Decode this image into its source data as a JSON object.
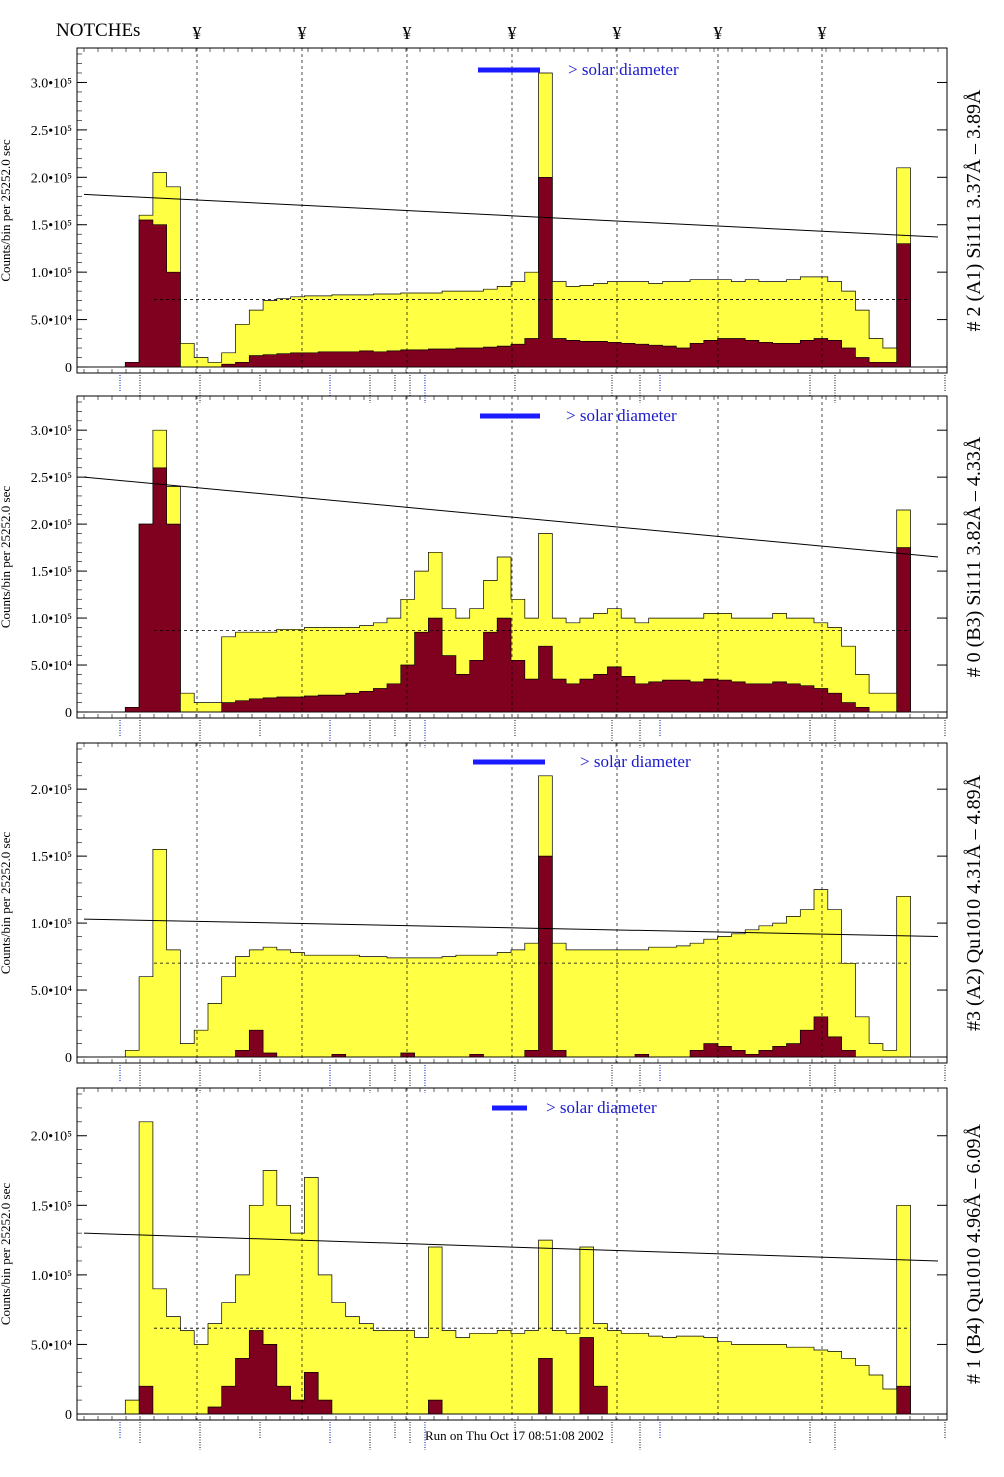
{
  "header": {
    "notches_label": "NOTCHEs",
    "notch_marker": "¥"
  },
  "footer": {
    "run_text": "Run on Thu Oct 17 08:51:08 2002"
  },
  "colors": {
    "total_fill": "#ffff44",
    "line_fill": "#800020",
    "legend_bar": "#1a1aff",
    "legend_text": "#1a1acc",
    "annotation_blue": "#2233cc"
  },
  "chart_data": [
    {
      "type": "area",
      "title": "# 2 (A1) Si111  3.37Å – 3.89Å",
      "ylabel": "Counts/bin per  25252.0 sec",
      "ylim": [
        0,
        330000
      ],
      "yticks": [
        0,
        50000,
        100000,
        150000,
        200000,
        250000,
        300000
      ],
      "ytick_labels": [
        "0",
        "5.0•10⁴",
        "1.0•10⁵",
        "1.5•10⁵",
        "2.0•10⁵",
        "2.5•10⁵",
        "3.0•10⁵"
      ],
      "legend": "> solar diameter",
      "trend_line": [
        182000,
        137000
      ],
      "series": [
        {
          "values": [
            0,
            0,
            0,
            5000,
            160000,
            205000,
            190000,
            25000,
            10000,
            5000,
            15000,
            45000,
            60000,
            70000,
            72000,
            74000,
            75000,
            75000,
            76000,
            76000,
            76000,
            77000,
            77000,
            78000,
            78000,
            78000,
            80000,
            80000,
            80000,
            82000,
            85000,
            90000,
            100000,
            310000,
            90000,
            85000,
            86000,
            88000,
            90000,
            90000,
            90000,
            88000,
            90000,
            90000,
            92000,
            92000,
            92000,
            90000,
            92000,
            90000,
            90000,
            92000,
            95000,
            95000,
            90000,
            80000,
            60000,
            30000,
            20000,
            210000,
            0,
            0
          ]
        },
        {
          "values": [
            0,
            0,
            0,
            5000,
            155000,
            150000,
            100000,
            0,
            0,
            0,
            3000,
            5000,
            12000,
            13000,
            14000,
            15000,
            15000,
            16000,
            16000,
            16000,
            17000,
            16000,
            17000,
            18000,
            18000,
            19000,
            19000,
            20000,
            20000,
            21000,
            22000,
            24000,
            30000,
            200000,
            30000,
            28000,
            27000,
            27000,
            26000,
            25000,
            24000,
            23000,
            22000,
            20000,
            25000,
            28000,
            30000,
            30000,
            28000,
            26000,
            25000,
            25000,
            28000,
            30000,
            28000,
            20000,
            10000,
            5000,
            5000,
            130000,
            0,
            0
          ]
        }
      ]
    },
    {
      "type": "area",
      "title": "# 0 (B3) Si111  3.82Å – 4.33Å",
      "ylabel": "Counts/bin per  25252.0 sec",
      "ylim": [
        0,
        330000
      ],
      "yticks": [
        0,
        50000,
        100000,
        150000,
        200000,
        250000,
        300000
      ],
      "ytick_labels": [
        "0",
        "5.0•10⁴",
        "1.0•10⁵",
        "1.5•10⁵",
        "2.0•10⁵",
        "2.5•10⁵",
        "3.0•10⁵"
      ],
      "legend": "> solar diameter",
      "trend_line": [
        250000,
        165000
      ],
      "series": [
        {
          "values": [
            0,
            0,
            0,
            5000,
            200000,
            300000,
            240000,
            20000,
            10000,
            10000,
            80000,
            85000,
            85000,
            85000,
            88000,
            88000,
            90000,
            90000,
            90000,
            90000,
            92000,
            95000,
            100000,
            120000,
            150000,
            170000,
            110000,
            100000,
            110000,
            140000,
            165000,
            120000,
            100000,
            190000,
            100000,
            95000,
            100000,
            105000,
            110000,
            100000,
            95000,
            100000,
            100000,
            100000,
            100000,
            105000,
            105000,
            100000,
            100000,
            100000,
            105000,
            100000,
            100000,
            95000,
            90000,
            70000,
            40000,
            20000,
            20000,
            215000,
            0,
            0
          ]
        },
        {
          "values": [
            0,
            0,
            0,
            5000,
            200000,
            260000,
            200000,
            0,
            0,
            0,
            10000,
            12000,
            14000,
            15000,
            16000,
            16000,
            17000,
            18000,
            18000,
            20000,
            22000,
            25000,
            30000,
            50000,
            85000,
            100000,
            60000,
            40000,
            55000,
            85000,
            100000,
            55000,
            35000,
            70000,
            35000,
            30000,
            35000,
            40000,
            48000,
            38000,
            30000,
            32000,
            34000,
            34000,
            32000,
            35000,
            34000,
            32000,
            30000,
            30000,
            32000,
            30000,
            28000,
            25000,
            20000,
            10000,
            5000,
            0,
            0,
            175000,
            0,
            0
          ]
        }
      ]
    },
    {
      "type": "area",
      "title": "#3 (A2) Qu1010  4.31Å – 4.89Å",
      "ylabel": "Counts/bin per  25252.0 sec",
      "ylim": [
        0,
        230000
      ],
      "yticks": [
        0,
        50000,
        100000,
        150000,
        200000
      ],
      "ytick_labels": [
        "0",
        "5.0•10⁴",
        "1.0•10⁵",
        "1.5•10⁵",
        "2.0•10⁵"
      ],
      "legend": "> solar diameter",
      "trend_line": [
        103000,
        90000
      ],
      "series": [
        {
          "values": [
            0,
            0,
            0,
            5000,
            60000,
            155000,
            80000,
            10000,
            20000,
            40000,
            60000,
            75000,
            80000,
            82000,
            80000,
            78000,
            76000,
            76000,
            76000,
            76000,
            75000,
            75000,
            74000,
            74000,
            74000,
            74000,
            75000,
            76000,
            76000,
            76000,
            78000,
            80000,
            85000,
            210000,
            85000,
            80000,
            80000,
            80000,
            80000,
            80000,
            80000,
            82000,
            82000,
            83000,
            85000,
            88000,
            90000,
            92000,
            95000,
            98000,
            100000,
            105000,
            110000,
            125000,
            110000,
            70000,
            30000,
            10000,
            5000,
            120000,
            0,
            0
          ]
        },
        {
          "values": [
            0,
            0,
            0,
            0,
            0,
            0,
            0,
            0,
            0,
            0,
            0,
            5000,
            20000,
            3000,
            0,
            0,
            0,
            0,
            2000,
            0,
            0,
            0,
            0,
            3000,
            0,
            0,
            0,
            0,
            2000,
            0,
            0,
            0,
            5000,
            150000,
            5000,
            0,
            0,
            0,
            0,
            0,
            2000,
            0,
            0,
            0,
            5000,
            10000,
            8000,
            5000,
            2000,
            5000,
            8000,
            10000,
            20000,
            30000,
            15000,
            5000,
            0,
            0,
            0,
            0,
            0,
            0
          ]
        }
      ]
    },
    {
      "type": "area",
      "title": "# 1 (B4) Qu1010 4.96Å – 6.09Å",
      "ylabel": "Counts/bin per  25252.0 sec",
      "ylim": [
        0,
        230000
      ],
      "yticks": [
        0,
        50000,
        100000,
        150000,
        200000
      ],
      "ytick_labels": [
        "0",
        "5.0•10⁴",
        "1.0•10⁵",
        "1.5•10⁵",
        "2.0•10⁵"
      ],
      "legend": "> solar diameter",
      "trend_line": [
        130000,
        110000
      ],
      "series": [
        {
          "values": [
            0,
            0,
            0,
            10000,
            210000,
            90000,
            70000,
            60000,
            50000,
            65000,
            80000,
            100000,
            150000,
            175000,
            150000,
            130000,
            170000,
            100000,
            80000,
            70000,
            65000,
            60000,
            60000,
            60000,
            55000,
            120000,
            60000,
            55000,
            58000,
            58000,
            60000,
            58000,
            60000,
            125000,
            60000,
            58000,
            120000,
            65000,
            60000,
            58000,
            58000,
            56000,
            55000,
            56000,
            56000,
            55000,
            52000,
            50000,
            50000,
            50000,
            50000,
            48000,
            48000,
            46000,
            45000,
            40000,
            35000,
            28000,
            18000,
            150000,
            0,
            0
          ]
        },
        {
          "values": [
            0,
            0,
            0,
            0,
            20000,
            0,
            0,
            0,
            0,
            5000,
            20000,
            40000,
            60000,
            50000,
            20000,
            10000,
            30000,
            10000,
            0,
            0,
            0,
            0,
            0,
            0,
            0,
            10000,
            0,
            0,
            0,
            0,
            0,
            0,
            0,
            40000,
            0,
            0,
            55000,
            20000,
            0,
            0,
            0,
            0,
            0,
            0,
            0,
            0,
            0,
            0,
            0,
            0,
            0,
            0,
            0,
            0,
            0,
            0,
            0,
            0,
            0,
            20000,
            0,
            0
          ]
        }
      ]
    }
  ]
}
